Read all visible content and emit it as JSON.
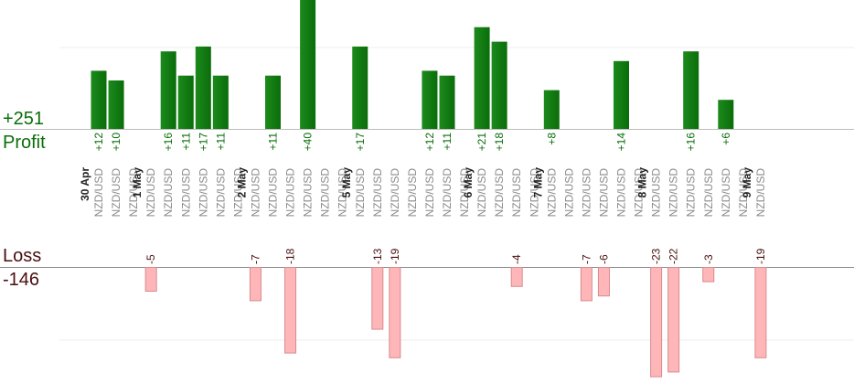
{
  "summary": {
    "profit_total": "+251",
    "profit_label": "Profit",
    "loss_label": "Loss",
    "loss_total": "-146"
  },
  "colors": {
    "profit_bar": "#0a6d0a",
    "loss_bar": "#ffb6b8",
    "loss_bar_border": "#d98a8c",
    "profit_text": "#0a6d0a",
    "loss_text": "#4a0e0e",
    "symbol_text": "#8a8a8a",
    "date_text": "#222222"
  },
  "chart_data": {
    "type": "bar",
    "orientation": "diverging",
    "profit_total": 251,
    "loss_total": -146,
    "y_scale_note": "profit bars clipped at top when exceeding visible range",
    "grid": true,
    "trades": [
      {
        "date": "30 Apr",
        "symbol": "NZD/USD",
        "value": 12
      },
      {
        "date": "",
        "symbol": "NZD/USD",
        "value": 10
      },
      {
        "date": "",
        "symbol": "NZD/USD",
        "value": null
      },
      {
        "date": "1 May",
        "symbol": "NZD/USD",
        "value": -5
      },
      {
        "date": "",
        "symbol": "NZD/USD",
        "value": 16
      },
      {
        "date": "",
        "symbol": "NZD/USD",
        "value": 11
      },
      {
        "date": "",
        "symbol": "NZD/USD",
        "value": 17
      },
      {
        "date": "",
        "symbol": "NZD/USD",
        "value": 11
      },
      {
        "date": "",
        "symbol": "NZD/USD",
        "value": null
      },
      {
        "date": "2 May",
        "symbol": "NZD/USD",
        "value": -7
      },
      {
        "date": "",
        "symbol": "NZD/USD",
        "value": 11
      },
      {
        "date": "",
        "symbol": "NZD/USD",
        "value": -18
      },
      {
        "date": "",
        "symbol": "NZD/USD",
        "value": 40
      },
      {
        "date": "",
        "symbol": "NZD/USD",
        "value": null
      },
      {
        "date": "",
        "symbol": "NZD/USD",
        "value": null
      },
      {
        "date": "5 May",
        "symbol": "NZD/USD",
        "value": 17
      },
      {
        "date": "",
        "symbol": "NZD/USD",
        "value": -13
      },
      {
        "date": "",
        "symbol": "NZD/USD",
        "value": -19
      },
      {
        "date": "",
        "symbol": "NZD/USD",
        "value": null
      },
      {
        "date": "",
        "symbol": "NZD/USD",
        "value": 12
      },
      {
        "date": "",
        "symbol": "NZD/USD",
        "value": 11
      },
      {
        "date": "",
        "symbol": "NZD/USD",
        "value": null
      },
      {
        "date": "6 May",
        "symbol": "NZD/USD",
        "value": 21
      },
      {
        "date": "",
        "symbol": "NZD/USD",
        "value": 18
      },
      {
        "date": "",
        "symbol": "NZD/USD",
        "value": -4
      },
      {
        "date": "",
        "symbol": "NZD/USD",
        "value": null
      },
      {
        "date": "7 May",
        "symbol": "NZD/USD",
        "value": 8
      },
      {
        "date": "",
        "symbol": "NZD/USD",
        "value": null
      },
      {
        "date": "",
        "symbol": "NZD/USD",
        "value": -7
      },
      {
        "date": "",
        "symbol": "NZD/USD",
        "value": -6
      },
      {
        "date": "",
        "symbol": "NZD/USD",
        "value": 14
      },
      {
        "date": "",
        "symbol": "NZD/USD",
        "value": null
      },
      {
        "date": "8 May",
        "symbol": "NZD/USD",
        "value": -23
      },
      {
        "date": "",
        "symbol": "NZD/USD",
        "value": -22
      },
      {
        "date": "",
        "symbol": "NZD/USD",
        "value": 16
      },
      {
        "date": "",
        "symbol": "NZD/USD",
        "value": -3
      },
      {
        "date": "",
        "symbol": "NZD/USD",
        "value": 6
      },
      {
        "date": "",
        "symbol": "NZD/USD",
        "value": null
      },
      {
        "date": "9 May",
        "symbol": "NZD/USD",
        "value": -19
      }
    ]
  }
}
